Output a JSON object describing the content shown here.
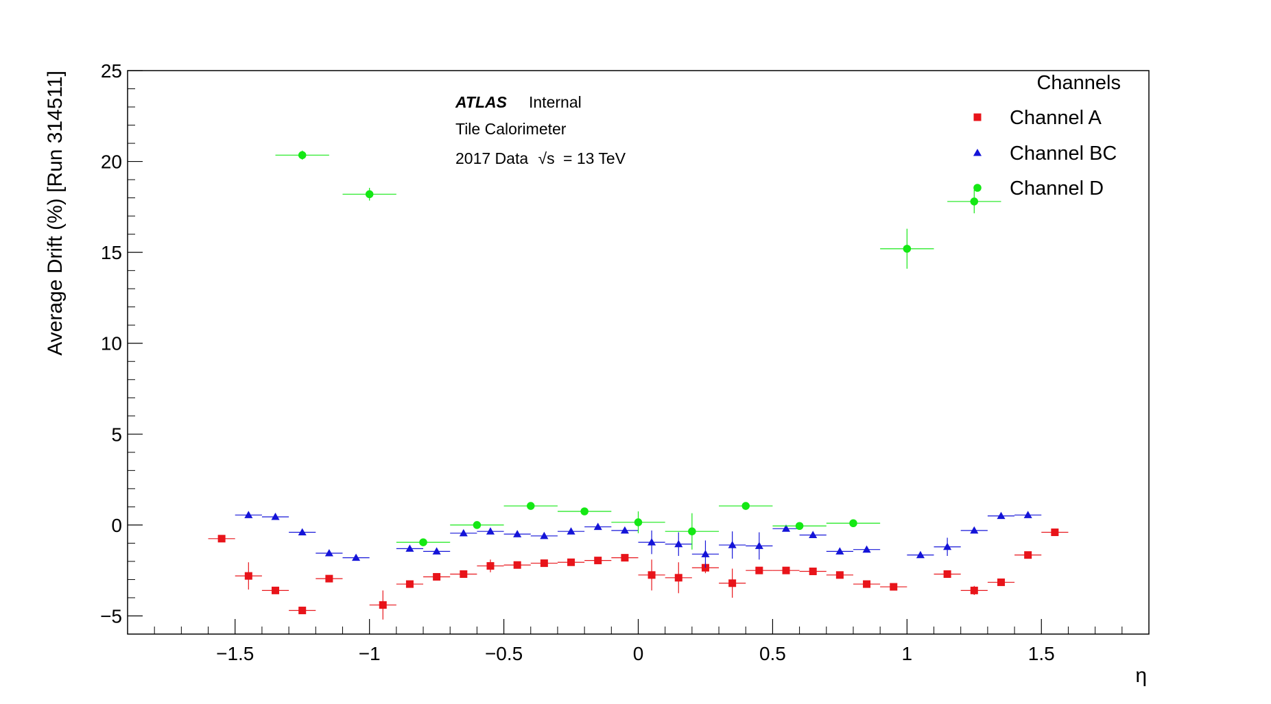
{
  "chart_data": {
    "type": "scatter",
    "title": "",
    "xlabel": "η",
    "ylabel": "Average Drift (%) [Run 314511]",
    "xlim": [
      -1.9,
      1.9
    ],
    "ylim": [
      -6,
      25
    ],
    "x_ticks": [
      -1.5,
      -1,
      -0.5,
      0,
      0.5,
      1,
      1.5
    ],
    "x_tick_labels": [
      "−1.5",
      "−1",
      "−0.5",
      "0",
      "0.5",
      "1",
      "1.5"
    ],
    "y_ticks": [
      -5,
      0,
      5,
      10,
      15,
      20,
      25
    ],
    "y_tick_labels": [
      "−5",
      "0",
      "5",
      "10",
      "15",
      "20",
      "25"
    ],
    "grid": false,
    "legend": {
      "title": "Channels",
      "placement": "top-right"
    },
    "annotations": {
      "experiment": "ATLAS",
      "status": "Internal",
      "detector": "Tile Calorimeter",
      "data_prefix": "2017 Data",
      "sqrt_s": "√s",
      "energy": "= 13 TeV"
    },
    "series": [
      {
        "name": "Channel A",
        "marker": "square",
        "color": "#e8141a",
        "xerr": 0.05,
        "points": [
          {
            "x": -1.55,
            "y": -0.75,
            "yerr": 0.15
          },
          {
            "x": -1.45,
            "y": -2.8,
            "yerr": 0.75
          },
          {
            "x": -1.35,
            "y": -3.6,
            "yerr": 0.15
          },
          {
            "x": -1.25,
            "y": -4.7,
            "yerr": 0.15
          },
          {
            "x": -1.15,
            "y": -2.95,
            "yerr": 0.15
          },
          {
            "x": -0.95,
            "y": -4.4,
            "yerr": 0.8
          },
          {
            "x": -0.85,
            "y": -3.25,
            "yerr": 0.15
          },
          {
            "x": -0.75,
            "y": -2.85,
            "yerr": 0.15
          },
          {
            "x": -0.65,
            "y": -2.7,
            "yerr": 0.15
          },
          {
            "x": -0.55,
            "y": -2.25,
            "yerr": 0.35
          },
          {
            "x": -0.45,
            "y": -2.2,
            "yerr": 0.15
          },
          {
            "x": -0.35,
            "y": -2.1,
            "yerr": 0.15
          },
          {
            "x": -0.25,
            "y": -2.05,
            "yerr": 0.15
          },
          {
            "x": -0.15,
            "y": -1.95,
            "yerr": 0.15
          },
          {
            "x": -0.05,
            "y": -1.8,
            "yerr": 0.15
          },
          {
            "x": 0.05,
            "y": -2.75,
            "yerr": 0.85
          },
          {
            "x": 0.15,
            "y": -2.9,
            "yerr": 0.85
          },
          {
            "x": 0.25,
            "y": -2.35,
            "yerr": 0.3
          },
          {
            "x": 0.35,
            "y": -3.2,
            "yerr": 0.8
          },
          {
            "x": 0.45,
            "y": -2.5,
            "yerr": 0.15
          },
          {
            "x": 0.55,
            "y": -2.5,
            "yerr": 0.15
          },
          {
            "x": 0.65,
            "y": -2.55,
            "yerr": 0.15
          },
          {
            "x": 0.75,
            "y": -2.75,
            "yerr": 0.15
          },
          {
            "x": 0.85,
            "y": -3.25,
            "yerr": 0.15
          },
          {
            "x": 0.95,
            "y": -3.4,
            "yerr": 0.15
          },
          {
            "x": 1.15,
            "y": -2.7,
            "yerr": 0.15
          },
          {
            "x": 1.25,
            "y": -3.6,
            "yerr": 0.25
          },
          {
            "x": 1.35,
            "y": -3.15,
            "yerr": 0.15
          },
          {
            "x": 1.45,
            "y": -1.65,
            "yerr": 0.15
          },
          {
            "x": 1.55,
            "y": -0.4,
            "yerr": 0.15
          }
        ]
      },
      {
        "name": "Channel BC",
        "marker": "triangle",
        "color": "#1414d8",
        "xerr": 0.05,
        "points": [
          {
            "x": -1.45,
            "y": 0.55,
            "yerr": 0.15
          },
          {
            "x": -1.35,
            "y": 0.45,
            "yerr": 0.15
          },
          {
            "x": -1.25,
            "y": -0.4,
            "yerr": 0.15
          },
          {
            "x": -1.15,
            "y": -1.55,
            "yerr": 0.15
          },
          {
            "x": -1.05,
            "y": -1.8,
            "yerr": 0.15
          },
          {
            "x": -0.85,
            "y": -1.3,
            "yerr": 0.15
          },
          {
            "x": -0.75,
            "y": -1.45,
            "yerr": 0.15
          },
          {
            "x": -0.65,
            "y": -0.45,
            "yerr": 0.15
          },
          {
            "x": -0.55,
            "y": -0.35,
            "yerr": 0.15
          },
          {
            "x": -0.45,
            "y": -0.5,
            "yerr": 0.15
          },
          {
            "x": -0.35,
            "y": -0.6,
            "yerr": 0.15
          },
          {
            "x": -0.25,
            "y": -0.35,
            "yerr": 0.15
          },
          {
            "x": -0.15,
            "y": -0.1,
            "yerr": 0.15
          },
          {
            "x": -0.05,
            "y": -0.3,
            "yerr": 0.15
          },
          {
            "x": 0.05,
            "y": -0.95,
            "yerr": 0.65
          },
          {
            "x": 0.15,
            "y": -1.05,
            "yerr": 0.65
          },
          {
            "x": 0.25,
            "y": -1.6,
            "yerr": 0.75
          },
          {
            "x": 0.35,
            "y": -1.1,
            "yerr": 0.75
          },
          {
            "x": 0.45,
            "y": -1.15,
            "yerr": 0.75
          },
          {
            "x": 0.55,
            "y": -0.2,
            "yerr": 0.15
          },
          {
            "x": 0.65,
            "y": -0.55,
            "yerr": 0.15
          },
          {
            "x": 0.75,
            "y": -1.45,
            "yerr": 0.15
          },
          {
            "x": 0.85,
            "y": -1.35,
            "yerr": 0.15
          },
          {
            "x": 1.05,
            "y": -1.65,
            "yerr": 0.15
          },
          {
            "x": 1.15,
            "y": -1.2,
            "yerr": 0.5
          },
          {
            "x": 1.25,
            "y": -0.3,
            "yerr": 0.15
          },
          {
            "x": 1.35,
            "y": 0.5,
            "yerr": 0.15
          },
          {
            "x": 1.45,
            "y": 0.55,
            "yerr": 0.15
          }
        ]
      },
      {
        "name": "Channel D",
        "marker": "circle",
        "color": "#14e814",
        "xerr": 0.1,
        "points": [
          {
            "x": -1.25,
            "y": 20.35,
            "yerr": 0.25
          },
          {
            "x": -1.0,
            "y": 18.2,
            "yerr": 0.35
          },
          {
            "x": -0.8,
            "y": -0.95,
            "yerr": 0.15
          },
          {
            "x": -0.6,
            "y": 0.0,
            "yerr": 0.15
          },
          {
            "x": -0.4,
            "y": 1.05,
            "yerr": 0.15
          },
          {
            "x": -0.2,
            "y": 0.75,
            "yerr": 0.15
          },
          {
            "x": 0.0,
            "y": 0.15,
            "yerr": 0.6
          },
          {
            "x": 0.2,
            "y": -0.35,
            "yerr": 1.0
          },
          {
            "x": 0.4,
            "y": 1.05,
            "yerr": 0.15
          },
          {
            "x": 0.6,
            "y": -0.05,
            "yerr": 0.15
          },
          {
            "x": 0.8,
            "y": 0.1,
            "yerr": 0.15
          },
          {
            "x": 1.0,
            "y": 15.2,
            "yerr": 1.1
          },
          {
            "x": 1.25,
            "y": 17.8,
            "yerr": 0.65
          }
        ]
      }
    ]
  }
}
